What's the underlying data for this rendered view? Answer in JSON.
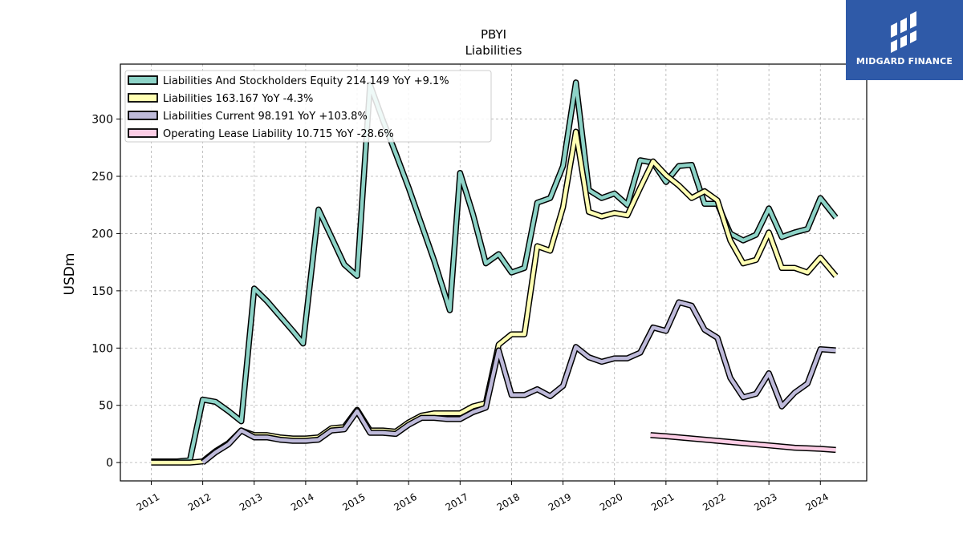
{
  "chart_data": {
    "type": "line",
    "title": "PBYI",
    "subtitle": "Liabilities",
    "ylabel": "USDm",
    "xlabel": "",
    "xlim": [
      2010.4,
      2024.9
    ],
    "ylim": [
      -16,
      348
    ],
    "x_ticks": [
      2011,
      2012,
      2013,
      2014,
      2015,
      2016,
      2017,
      2018,
      2019,
      2020,
      2021,
      2022,
      2023,
      2024
    ],
    "x_tick_labels": [
      "2011",
      "2012",
      "2013",
      "2014",
      "2015",
      "2016",
      "2017",
      "2018",
      "2019",
      "2020",
      "2021",
      "2022",
      "2023",
      "2024"
    ],
    "y_ticks": [
      0,
      50,
      100,
      150,
      200,
      250,
      300
    ],
    "y_tick_labels": [
      "0",
      "50",
      "100",
      "150",
      "200",
      "250",
      "300"
    ],
    "grid": true,
    "legend_position": "top-left",
    "series": [
      {
        "name": "Liabilities And Stockholders Equity",
        "legend_label": "Liabilities And Stockholders Equity  214.149 YoY +9.1%",
        "color": "#8dd3c7",
        "points": [
          [
            2011.0,
            1
          ],
          [
            2011.25,
            1
          ],
          [
            2011.5,
            1
          ],
          [
            2011.75,
            2
          ],
          [
            2012.0,
            55
          ],
          [
            2012.25,
            53
          ],
          [
            2012.5,
            45
          ],
          [
            2012.75,
            36
          ],
          [
            2013.0,
            152
          ],
          [
            2013.25,
            141
          ],
          [
            2013.5,
            128
          ],
          [
            2013.75,
            115
          ],
          [
            2013.95,
            104
          ],
          [
            2014.25,
            221
          ],
          [
            2014.5,
            197
          ],
          [
            2014.75,
            173
          ],
          [
            2015.0,
            163
          ],
          [
            2015.25,
            330
          ],
          [
            2015.5,
            299
          ],
          [
            2015.75,
            270
          ],
          [
            2016.0,
            240
          ],
          [
            2016.25,
            208
          ],
          [
            2016.5,
            176
          ],
          [
            2016.8,
            133
          ],
          [
            2017.0,
            253
          ],
          [
            2017.25,
            217
          ],
          [
            2017.5,
            174
          ],
          [
            2017.75,
            182
          ],
          [
            2018.0,
            166
          ],
          [
            2018.25,
            170
          ],
          [
            2018.5,
            227
          ],
          [
            2018.75,
            231
          ],
          [
            2019.0,
            259
          ],
          [
            2019.25,
            332
          ],
          [
            2019.5,
            238
          ],
          [
            2019.75,
            231
          ],
          [
            2020.0,
            235
          ],
          [
            2020.25,
            225
          ],
          [
            2020.5,
            264
          ],
          [
            2020.75,
            262
          ],
          [
            2021.0,
            245
          ],
          [
            2021.25,
            259
          ],
          [
            2021.5,
            260
          ],
          [
            2021.75,
            226
          ],
          [
            2022.0,
            226
          ],
          [
            2022.25,
            200
          ],
          [
            2022.5,
            194
          ],
          [
            2022.75,
            199
          ],
          [
            2023.0,
            222
          ],
          [
            2023.25,
            197
          ],
          [
            2023.5,
            201
          ],
          [
            2023.75,
            204
          ],
          [
            2024.0,
            231
          ],
          [
            2024.3,
            214
          ]
        ]
      },
      {
        "name": "Liabilities",
        "legend_label": "Liabilities  163.167 YoY -4.3%",
        "color": "#ffffb3",
        "points": [
          [
            2011.0,
            0
          ],
          [
            2011.25,
            0
          ],
          [
            2011.5,
            0
          ],
          [
            2011.75,
            0
          ],
          [
            2012.0,
            1
          ],
          [
            2012.25,
            10
          ],
          [
            2012.5,
            17
          ],
          [
            2012.75,
            28
          ],
          [
            2013.0,
            24
          ],
          [
            2013.25,
            24
          ],
          [
            2013.5,
            22
          ],
          [
            2013.75,
            21
          ],
          [
            2014.0,
            21
          ],
          [
            2014.25,
            22
          ],
          [
            2014.5,
            30
          ],
          [
            2014.75,
            31
          ],
          [
            2015.0,
            46
          ],
          [
            2015.25,
            28
          ],
          [
            2015.5,
            28
          ],
          [
            2015.75,
            27
          ],
          [
            2016.0,
            35
          ],
          [
            2016.25,
            41
          ],
          [
            2016.5,
            43
          ],
          [
            2016.75,
            43
          ],
          [
            2017.0,
            43
          ],
          [
            2017.25,
            49
          ],
          [
            2017.5,
            52
          ],
          [
            2017.75,
            103
          ],
          [
            2018.0,
            112
          ],
          [
            2018.25,
            112
          ],
          [
            2018.5,
            189
          ],
          [
            2018.75,
            185
          ],
          [
            2019.0,
            223
          ],
          [
            2019.25,
            289
          ],
          [
            2019.5,
            219
          ],
          [
            2019.75,
            215
          ],
          [
            2020.0,
            218
          ],
          [
            2020.25,
            216
          ],
          [
            2020.5,
            240
          ],
          [
            2020.75,
            263
          ],
          [
            2021.0,
            251
          ],
          [
            2021.25,
            242
          ],
          [
            2021.5,
            231
          ],
          [
            2021.75,
            237
          ],
          [
            2022.0,
            229
          ],
          [
            2022.25,
            194
          ],
          [
            2022.5,
            174
          ],
          [
            2022.75,
            177
          ],
          [
            2023.0,
            201
          ],
          [
            2023.25,
            170
          ],
          [
            2023.5,
            170
          ],
          [
            2023.75,
            166
          ],
          [
            2024.0,
            179
          ],
          [
            2024.3,
            163
          ]
        ]
      },
      {
        "name": "Liabilities Current",
        "legend_label": "Liabilities Current  98.191 YoY +103.8%",
        "color": "#bebada",
        "points": [
          [
            2012.0,
            0
          ],
          [
            2012.25,
            9
          ],
          [
            2012.5,
            16
          ],
          [
            2012.75,
            28
          ],
          [
            2013.0,
            22
          ],
          [
            2013.25,
            22
          ],
          [
            2013.5,
            20
          ],
          [
            2013.75,
            19
          ],
          [
            2014.0,
            19
          ],
          [
            2014.25,
            20
          ],
          [
            2014.5,
            28
          ],
          [
            2014.75,
            29
          ],
          [
            2015.0,
            45
          ],
          [
            2015.25,
            26
          ],
          [
            2015.5,
            26
          ],
          [
            2015.75,
            25
          ],
          [
            2016.0,
            33
          ],
          [
            2016.25,
            39
          ],
          [
            2016.5,
            39
          ],
          [
            2016.75,
            38
          ],
          [
            2017.0,
            38
          ],
          [
            2017.25,
            44
          ],
          [
            2017.5,
            48
          ],
          [
            2017.75,
            98
          ],
          [
            2018.0,
            59
          ],
          [
            2018.25,
            59
          ],
          [
            2018.5,
            64
          ],
          [
            2018.75,
            58
          ],
          [
            2019.0,
            67
          ],
          [
            2019.25,
            101
          ],
          [
            2019.5,
            92
          ],
          [
            2019.75,
            88
          ],
          [
            2020.0,
            91
          ],
          [
            2020.25,
            91
          ],
          [
            2020.5,
            96
          ],
          [
            2020.75,
            118
          ],
          [
            2021.0,
            115
          ],
          [
            2021.25,
            140
          ],
          [
            2021.5,
            137
          ],
          [
            2021.75,
            116
          ],
          [
            2022.0,
            109
          ],
          [
            2022.25,
            74
          ],
          [
            2022.5,
            57
          ],
          [
            2022.75,
            60
          ],
          [
            2023.0,
            78
          ],
          [
            2023.25,
            49
          ],
          [
            2023.5,
            61
          ],
          [
            2023.75,
            69
          ],
          [
            2024.0,
            99
          ],
          [
            2024.3,
            98
          ]
        ]
      },
      {
        "name": "Operating Lease Liability",
        "legend_label": "Operating Lease Liability  10.715 YoY -28.6%",
        "color": "#fccde5",
        "points": [
          [
            2020.7,
            24
          ],
          [
            2021.0,
            23
          ],
          [
            2021.5,
            21
          ],
          [
            2022.0,
            19
          ],
          [
            2022.5,
            17
          ],
          [
            2023.0,
            15
          ],
          [
            2023.5,
            13
          ],
          [
            2024.0,
            12
          ],
          [
            2024.3,
            11
          ]
        ]
      }
    ]
  },
  "logo": {
    "text": "MIDGARD FINANCE"
  }
}
